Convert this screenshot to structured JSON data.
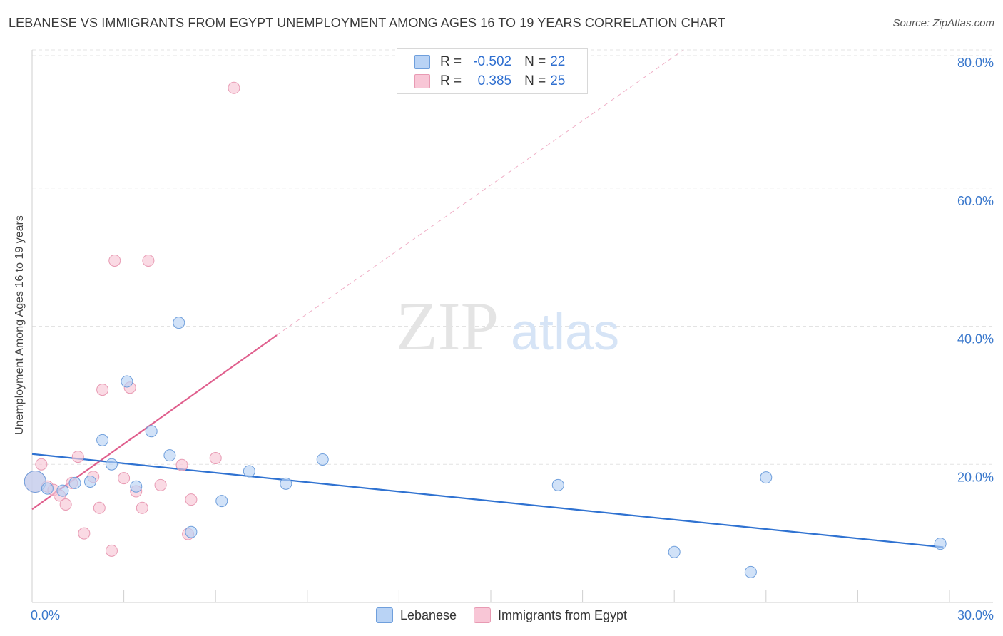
{
  "title": "LEBANESE VS IMMIGRANTS FROM EGYPT UNEMPLOYMENT AMONG AGES 16 TO 19 YEARS CORRELATION CHART",
  "source": "Source: ZipAtlas.com",
  "watermark": {
    "zip": "ZIP",
    "atlas": "atlas"
  },
  "legend": {
    "rows": [
      {
        "r_label": "R = ",
        "r_value": "-0.502",
        "n_label": "N = ",
        "n_value": "22"
      },
      {
        "r_label": "R = ",
        "r_value": "0.385",
        "n_label": "N = ",
        "n_value": "25"
      }
    ]
  },
  "bottom_legend": {
    "lebanese": "Lebanese",
    "egypt": "Immigrants from Egypt"
  },
  "colors": {
    "lebanese_fill": "#b9d3f5",
    "lebanese_stroke": "#6f9fdc",
    "lebanese_line": "#2f72d1",
    "egypt_fill": "#f8c6d6",
    "egypt_stroke": "#e89ab3",
    "egypt_line": "#e0608e",
    "axis_text": "#3a78cc",
    "grid": "#e3e3e3"
  },
  "chart_data": {
    "type": "scatter",
    "title": "LEBANESE VS IMMIGRANTS FROM EGYPT UNEMPLOYMENT AMONG AGES 16 TO 19 YEARS CORRELATION CHART",
    "xlabel": "",
    "ylabel": "Unemployment Among Ages 16 to 19 years",
    "xlim": [
      0,
      30
    ],
    "ylim": [
      0,
      80
    ],
    "x_tick_labels": [
      "0.0%",
      "30.0%"
    ],
    "y_ticks": [
      20,
      40,
      60,
      80
    ],
    "y_tick_labels": [
      "20.0%",
      "40.0%",
      "60.0%",
      "80.0%"
    ],
    "series": [
      {
        "name": "Lebanese",
        "r": -0.502,
        "n": 22,
        "points": [
          {
            "x": 0.1,
            "y": 17.5,
            "size": "large"
          },
          {
            "x": 0.5,
            "y": 16.5
          },
          {
            "x": 1.0,
            "y": 16.2
          },
          {
            "x": 1.4,
            "y": 17.3
          },
          {
            "x": 1.9,
            "y": 17.5
          },
          {
            "x": 2.3,
            "y": 23.5
          },
          {
            "x": 2.6,
            "y": 20.0
          },
          {
            "x": 3.1,
            "y": 32.0
          },
          {
            "x": 3.4,
            "y": 16.8
          },
          {
            "x": 3.9,
            "y": 24.8
          },
          {
            "x": 4.5,
            "y": 21.3
          },
          {
            "x": 4.8,
            "y": 40.5
          },
          {
            "x": 5.2,
            "y": 10.2
          },
          {
            "x": 6.2,
            "y": 14.7
          },
          {
            "x": 7.1,
            "y": 19.0
          },
          {
            "x": 8.3,
            "y": 17.2
          },
          {
            "x": 9.5,
            "y": 20.7
          },
          {
            "x": 17.2,
            "y": 17.0
          },
          {
            "x": 21.0,
            "y": 7.3
          },
          {
            "x": 23.5,
            "y": 4.4
          },
          {
            "x": 24.0,
            "y": 18.1
          },
          {
            "x": 29.7,
            "y": 8.5
          }
        ],
        "trend": {
          "x": [
            0,
            29.8
          ],
          "y": [
            21.5,
            8.0
          ]
        }
      },
      {
        "name": "Immigrants from Egypt",
        "r": 0.385,
        "n": 25,
        "points": [
          {
            "x": 0.1,
            "y": 17.5,
            "size": "large"
          },
          {
            "x": 0.3,
            "y": 20.0
          },
          {
            "x": 0.5,
            "y": 16.8
          },
          {
            "x": 0.7,
            "y": 16.3
          },
          {
            "x": 0.9,
            "y": 15.5
          },
          {
            "x": 1.1,
            "y": 14.2
          },
          {
            "x": 1.3,
            "y": 17.3
          },
          {
            "x": 1.5,
            "y": 21.1
          },
          {
            "x": 1.7,
            "y": 10.0
          },
          {
            "x": 2.0,
            "y": 18.2
          },
          {
            "x": 2.2,
            "y": 13.7
          },
          {
            "x": 2.3,
            "y": 30.8
          },
          {
            "x": 2.6,
            "y": 7.5
          },
          {
            "x": 2.7,
            "y": 49.5
          },
          {
            "x": 3.0,
            "y": 18.0
          },
          {
            "x": 3.2,
            "y": 31.1
          },
          {
            "x": 3.4,
            "y": 16.1
          },
          {
            "x": 3.6,
            "y": 13.7
          },
          {
            "x": 3.8,
            "y": 49.5
          },
          {
            "x": 4.2,
            "y": 17.0
          },
          {
            "x": 4.9,
            "y": 19.9
          },
          {
            "x": 5.1,
            "y": 9.9
          },
          {
            "x": 5.2,
            "y": 14.9
          },
          {
            "x": 6.0,
            "y": 20.9
          },
          {
            "x": 6.6,
            "y": 74.5
          }
        ],
        "trend": {
          "x": [
            0,
            8.0
          ],
          "y": [
            13.5,
            38.7
          ]
        },
        "trend_extension": {
          "x": [
            8.0,
            21.3
          ],
          "y": [
            38.7,
            80.0
          ]
        }
      }
    ]
  }
}
